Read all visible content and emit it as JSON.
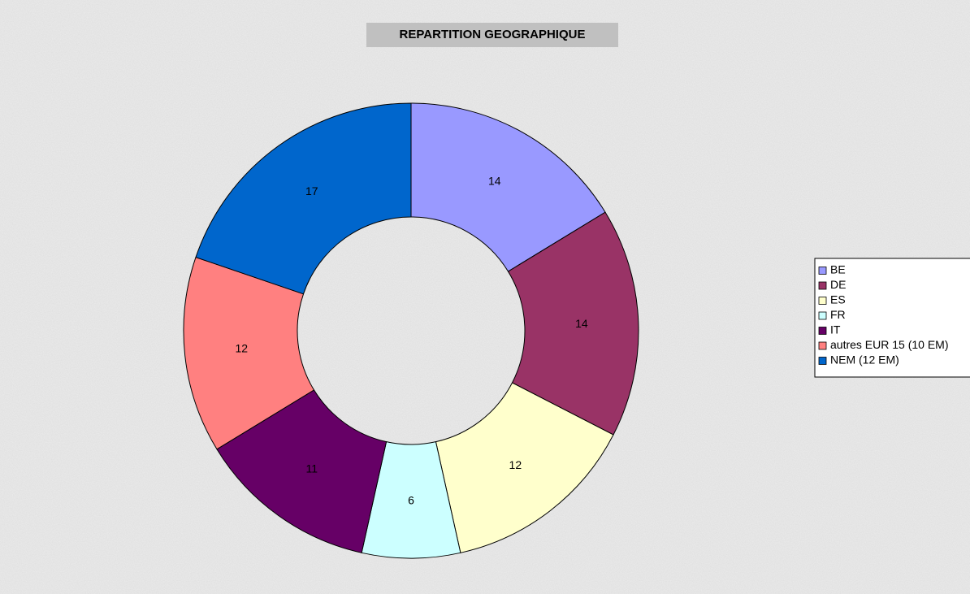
{
  "chart_data": {
    "type": "donut",
    "title": "REPARTITION GEOGRAPHIQUE",
    "categories": [
      "BE",
      "DE",
      "ES",
      "FR",
      "IT",
      "autres EUR 15 (10 EM)",
      "NEM (12 EM)"
    ],
    "values": [
      14,
      14,
      12,
      6,
      11,
      12,
      17
    ],
    "colors": [
      "#9999ff",
      "#993366",
      "#ffffcc",
      "#ccffff",
      "#660066",
      "#ff8080",
      "#0066cc"
    ],
    "legend": "right"
  }
}
